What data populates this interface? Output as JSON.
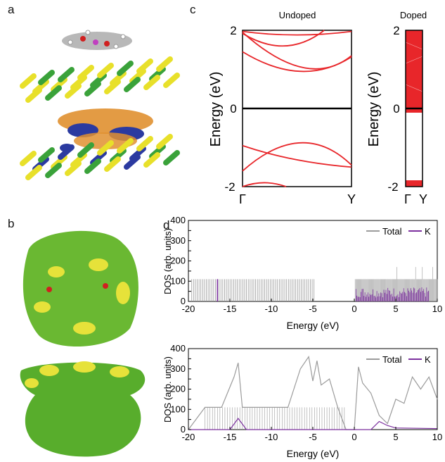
{
  "panel_labels": {
    "a": "a",
    "b": "b",
    "c": "c",
    "d": "d"
  },
  "panel_c": {
    "undoped_title": "Undoped",
    "doped_title": "Doped",
    "ylabel": "Energy (eV)",
    "ylim": [
      -2,
      2
    ],
    "yticks": [
      "2",
      "0",
      "-2"
    ],
    "undoped_kpoints": [
      "Γ",
      "Y"
    ],
    "doped_kpoints": [
      "Γ",
      "Y"
    ],
    "colors": {
      "bands": "#e8262a",
      "fermi": "#000000"
    }
  },
  "panel_d": {
    "ylabel": "DOS (arb. units)",
    "xlabel": "Energy (eV)",
    "xticks": [
      "-20",
      "-15",
      "-10",
      "-5",
      "0",
      "5",
      "10"
    ],
    "yticks": [
      "0",
      "50",
      "100",
      "150",
      "200",
      "250",
      "300",
      "350",
      "400"
    ],
    "legend": {
      "total": "Total",
      "k": "K"
    },
    "colors": {
      "total": "#9b9b9b",
      "k": "#7b2f9e"
    }
  },
  "chart_data": [
    {
      "type": "line",
      "title": "Undoped",
      "xlabel": "",
      "ylabel": "Energy (eV)",
      "ylim": [
        -2,
        2
      ],
      "x_ticks": [
        "Γ",
        "Y"
      ],
      "series": [
        {
          "values": [
            [
              0,
              1.97
            ],
            [
              0.5,
              1.88
            ],
            [
              1,
              1.97
            ]
          ]
        },
        {
          "values": [
            [
              0,
              1.45
            ],
            [
              0.55,
              0.95
            ],
            [
              1,
              1.32
            ]
          ]
        },
        {
          "values": [
            [
              0,
              1.95
            ],
            [
              0.6,
              1.05
            ],
            [
              1,
              1.35
            ]
          ]
        },
        {
          "values": [
            [
              0,
              1.92
            ],
            [
              0.4,
              1.6
            ],
            [
              0.75,
              2.0
            ]
          ]
        },
        {
          "values": [
            [
              0,
              -0.95
            ],
            [
              0.45,
              -1.3
            ],
            [
              1,
              -1.5
            ]
          ]
        },
        {
          "values": [
            [
              0,
              -1.6
            ],
            [
              0.55,
              -0.88
            ],
            [
              1,
              -1.45
            ]
          ]
        },
        {
          "values": [
            [
              0,
              -2.0
            ],
            [
              0.2,
              -1.9
            ],
            [
              0.4,
              -2.0
            ]
          ]
        }
      ]
    },
    {
      "type": "line",
      "title": "Doped",
      "ylabel": "Energy (eV)",
      "ylim": [
        -2,
        2
      ],
      "x_ticks": [
        "Γ",
        "Y"
      ]
    },
    {
      "type": "bar",
      "xlabel": "Energy (eV)",
      "ylabel": "DOS (arb. units)",
      "xlim": [
        -20,
        10
      ],
      "ylim": [
        0,
        400
      ],
      "series": [
        {
          "name": "Total",
          "note_values": "spikes ~110 between -20 and -5; dense 0 to 10 with peaks up to ~175"
        },
        {
          "name": "K",
          "note_values": "spike ~110 at -16.5; band 0 to 9 up to ~70"
        }
      ]
    },
    {
      "type": "line",
      "xlabel": "Energy (eV)",
      "ylabel": "DOS (arb. units)",
      "xlim": [
        -20,
        10
      ],
      "ylim": [
        0,
        400
      ],
      "series": [
        {
          "name": "Total",
          "x": [
            -20,
            -18,
            -16,
            -14.5,
            -14,
            -13.5,
            -12,
            -10,
            -8,
            -6.5,
            -5.5,
            -5,
            -4.5,
            -4,
            -3,
            -2,
            -1,
            0,
            0.5,
            1,
            2,
            3,
            4,
            5,
            6,
            7,
            8,
            9,
            10
          ],
          "values": [
            0,
            110,
            110,
            260,
            330,
            110,
            110,
            110,
            110,
            300,
            360,
            240,
            340,
            220,
            250,
            110,
            0,
            0,
            310,
            230,
            180,
            70,
            30,
            150,
            130,
            260,
            200,
            260,
            150
          ]
        },
        {
          "name": "K",
          "x": [
            -20,
            -15,
            -14,
            -13,
            2,
            3,
            3.5,
            4,
            5,
            10
          ],
          "values": [
            0,
            0,
            55,
            0,
            0,
            40,
            30,
            20,
            8,
            5
          ]
        }
      ]
    }
  ]
}
